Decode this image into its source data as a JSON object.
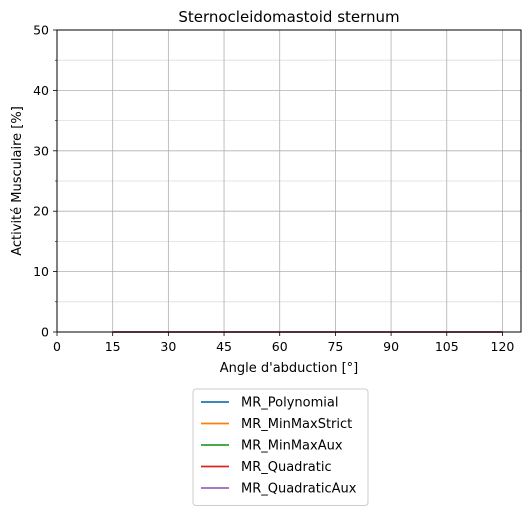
{
  "chart_data": {
    "type": "line",
    "title": "Sternocleidomastoid sternum",
    "xlabel": "Angle d'abduction [°]",
    "ylabel": "Activité Musculaire [%]",
    "xlim": [
      0,
      125
    ],
    "ylim": [
      0,
      50
    ],
    "xticks": [
      0,
      15,
      30,
      45,
      60,
      75,
      90,
      105,
      120
    ],
    "yticks": [
      0,
      10,
      20,
      30,
      40,
      50
    ],
    "grid": {
      "major": true,
      "minor_y": true
    },
    "legend_position": "below plot, centered",
    "x": [
      15,
      30,
      45,
      60,
      75,
      90,
      105,
      120
    ],
    "series": [
      {
        "name": "MR_Polynomial",
        "color": "#1f77b4",
        "values": [
          0,
          0,
          0,
          0,
          0,
          0,
          0,
          0
        ]
      },
      {
        "name": "MR_MinMaxStrict",
        "color": "#ff7f0e",
        "values": [
          0,
          0,
          0,
          0,
          0,
          0,
          0,
          0
        ]
      },
      {
        "name": "MR_MinMaxAux",
        "color": "#2ca02c",
        "values": [
          0,
          0,
          0,
          0,
          0,
          0,
          0,
          0
        ]
      },
      {
        "name": "MR_Quadratic",
        "color": "#d62728",
        "values": [
          0,
          0,
          0,
          0,
          0,
          0,
          0,
          0
        ]
      },
      {
        "name": "MR_QuadraticAux",
        "color": "#9467bd",
        "values": [
          0,
          0,
          0,
          0,
          0,
          0,
          0,
          0
        ]
      }
    ]
  }
}
